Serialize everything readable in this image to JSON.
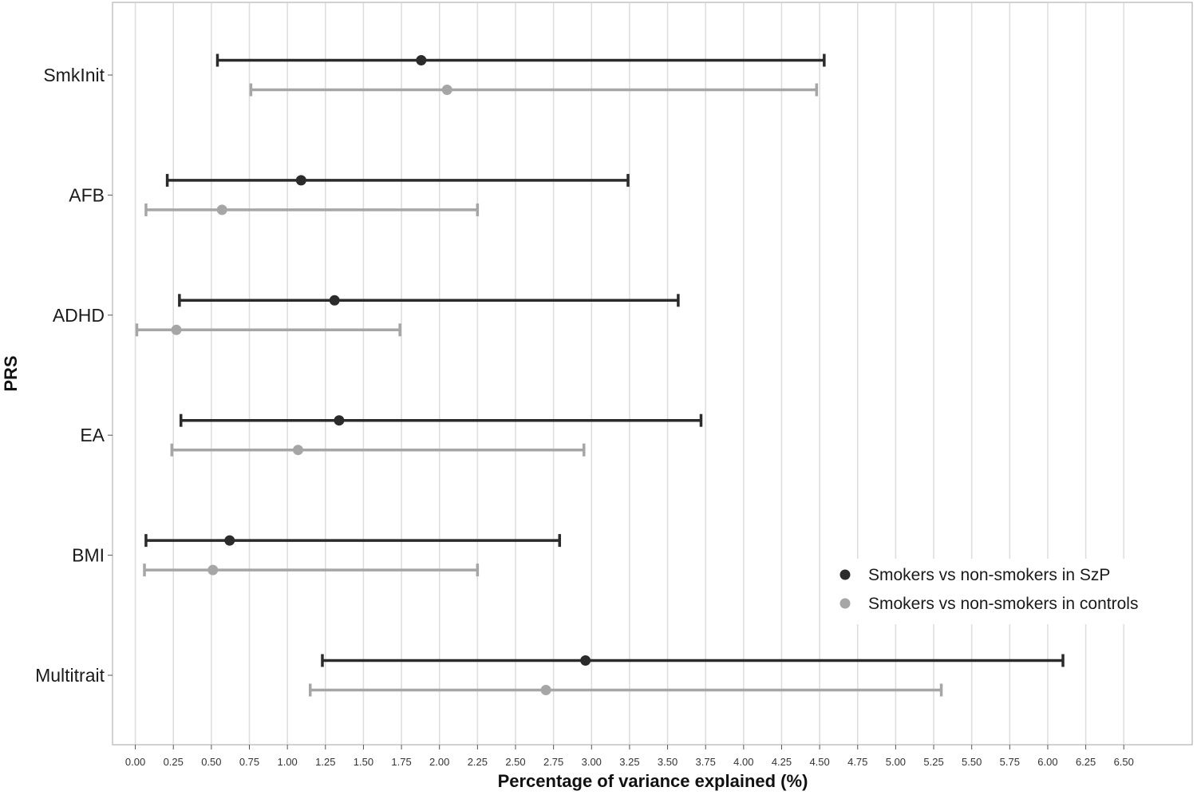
{
  "chart_data": {
    "type": "scatter",
    "subtype": "forest-plot",
    "title": "",
    "xlabel": "Percentage of variance explained (%)",
    "ylabel": "PRS",
    "xlim": [
      -0.15,
      6.95
    ],
    "x_ticks": [
      "0.00",
      "0.25",
      "0.50",
      "0.75",
      "1.00",
      "1.25",
      "1.50",
      "1.75",
      "2.00",
      "2.25",
      "2.50",
      "2.75",
      "3.00",
      "3.25",
      "3.50",
      "3.75",
      "4.00",
      "4.25",
      "4.50",
      "4.75",
      "5.00",
      "5.25",
      "5.50",
      "5.75",
      "6.00",
      "6.25",
      "6.50"
    ],
    "categories": [
      "SmkInit",
      "AFB",
      "ADHD",
      "EA",
      "BMI",
      "Multitrait"
    ],
    "grid": "vertical",
    "legend_position": "bottom-right",
    "series": [
      {
        "name": "Smokers vs non-smokers in SzP",
        "color": "#2b2b2b",
        "points": [
          {
            "category": "SmkInit",
            "estimate": 1.88,
            "ci_low": 0.54,
            "ci_high": 4.53
          },
          {
            "category": "AFB",
            "estimate": 1.09,
            "ci_low": 0.21,
            "ci_high": 3.24
          },
          {
            "category": "ADHD",
            "estimate": 1.31,
            "ci_low": 0.29,
            "ci_high": 3.57
          },
          {
            "category": "EA",
            "estimate": 1.34,
            "ci_low": 0.3,
            "ci_high": 3.72
          },
          {
            "category": "BMI",
            "estimate": 0.62,
            "ci_low": 0.07,
            "ci_high": 2.79
          },
          {
            "category": "Multitrait",
            "estimate": 2.96,
            "ci_low": 1.23,
            "ci_high": 6.1
          }
        ]
      },
      {
        "name": "Smokers vs non-smokers in controls",
        "color": "#a6a6a6",
        "points": [
          {
            "category": "SmkInit",
            "estimate": 2.05,
            "ci_low": 0.76,
            "ci_high": 4.48
          },
          {
            "category": "AFB",
            "estimate": 0.57,
            "ci_low": 0.07,
            "ci_high": 2.25
          },
          {
            "category": "ADHD",
            "estimate": 0.27,
            "ci_low": 0.01,
            "ci_high": 1.74
          },
          {
            "category": "EA",
            "estimate": 1.07,
            "ci_low": 0.24,
            "ci_high": 2.95
          },
          {
            "category": "BMI",
            "estimate": 0.51,
            "ci_low": 0.06,
            "ci_high": 2.25
          },
          {
            "category": "Multitrait",
            "estimate": 2.7,
            "ci_low": 1.15,
            "ci_high": 5.3
          }
        ]
      }
    ]
  }
}
